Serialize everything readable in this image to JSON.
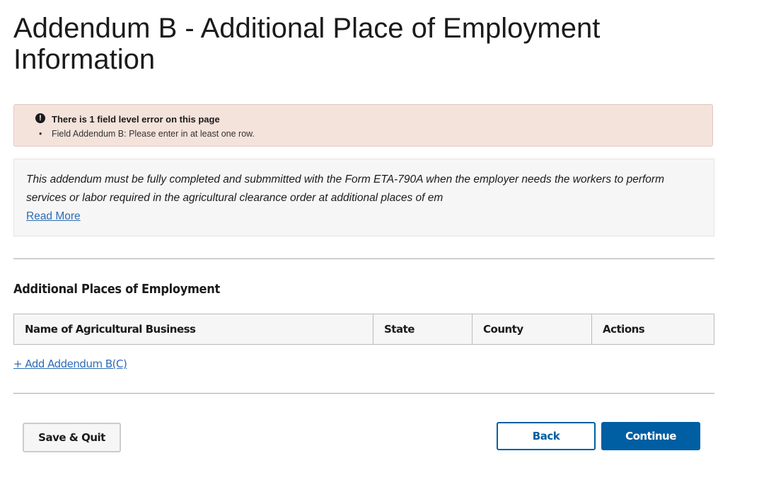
{
  "page_title": "Addendum B - Additional Place of Employment Information",
  "error": {
    "icon": "exclamation-circle-icon",
    "title": "There is 1 field level error on this page",
    "items": [
      "Field Addendum B: Please enter in at least one row."
    ]
  },
  "info": {
    "text": "This addendum must be fully completed and submmitted with the Form ETA-790A when the employer needs the workers to perform services or labor required in the agricultural clearance order at additional places of em",
    "read_more": "Read More"
  },
  "section": {
    "title": "Additional Places of Employment",
    "columns": [
      "Name of Agricultural Business",
      "State",
      "County",
      "Actions"
    ],
    "add_link": "+ Add Addendum B(C)"
  },
  "buttons": {
    "save_quit": "Save & Quit",
    "back": "Back",
    "continue": "Continue"
  },
  "colors": {
    "primary": "#005ea2",
    "error_bg": "#f4e3db"
  }
}
